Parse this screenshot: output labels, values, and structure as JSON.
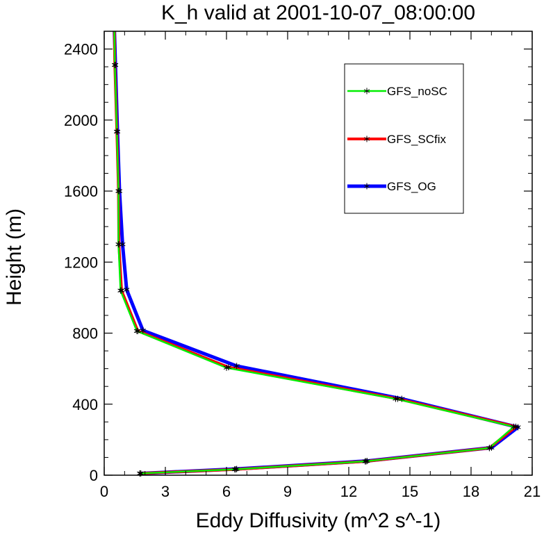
{
  "chart_data": {
    "type": "line",
    "title": "K_h valid at 2001-10-07_08:00:00",
    "xlabel": "Eddy Diffusivity (m^2 s^-1)",
    "ylabel": "Height (m)",
    "xlim": [
      0,
      21
    ],
    "ylim": [
      0,
      2500
    ],
    "xticks": [
      0,
      3,
      6,
      9,
      12,
      15,
      18,
      21
    ],
    "yticks": [
      0,
      400,
      800,
      1200,
      1600,
      2000,
      2400
    ],
    "grid": false,
    "legend_position": "top-right",
    "series": [
      {
        "name": "GFS_OG",
        "color": "#0000ff",
        "width": 5,
        "points": [
          [
            1.8,
            10
          ],
          [
            6.5,
            35
          ],
          [
            12.9,
            80
          ],
          [
            19.0,
            155
          ],
          [
            20.3,
            270
          ],
          [
            14.6,
            430
          ],
          [
            6.5,
            615
          ],
          [
            1.9,
            815
          ],
          [
            1.1,
            1045
          ],
          [
            0.9,
            1300
          ],
          [
            0.75,
            1600
          ],
          [
            0.65,
            1935
          ],
          [
            0.55,
            2310
          ],
          [
            0.5,
            2500
          ]
        ]
      },
      {
        "name": "GFS_SCfix",
        "color": "#ff0000",
        "width": 4,
        "points": [
          [
            1.75,
            10
          ],
          [
            6.45,
            33
          ],
          [
            12.85,
            78
          ],
          [
            18.9,
            153
          ],
          [
            20.2,
            273
          ],
          [
            14.4,
            430
          ],
          [
            6.1,
            608
          ],
          [
            1.65,
            812
          ],
          [
            0.85,
            1040
          ],
          [
            0.72,
            1300
          ],
          [
            0.7,
            1600
          ],
          [
            0.62,
            1935
          ],
          [
            0.52,
            2310
          ],
          [
            0.5,
            2500
          ]
        ]
      },
      {
        "name": "GFS_noSC",
        "color": "#00ee00",
        "width": 2.5,
        "points": [
          [
            1.75,
            10
          ],
          [
            6.4,
            33
          ],
          [
            12.8,
            78
          ],
          [
            18.9,
            153
          ],
          [
            20.1,
            273
          ],
          [
            14.3,
            430
          ],
          [
            6.0,
            605
          ],
          [
            1.6,
            812
          ],
          [
            0.8,
            1040
          ],
          [
            0.7,
            1300
          ],
          [
            0.7,
            1600
          ],
          [
            0.62,
            1935
          ],
          [
            0.52,
            2310
          ],
          [
            0.5,
            2500
          ]
        ]
      }
    ]
  }
}
